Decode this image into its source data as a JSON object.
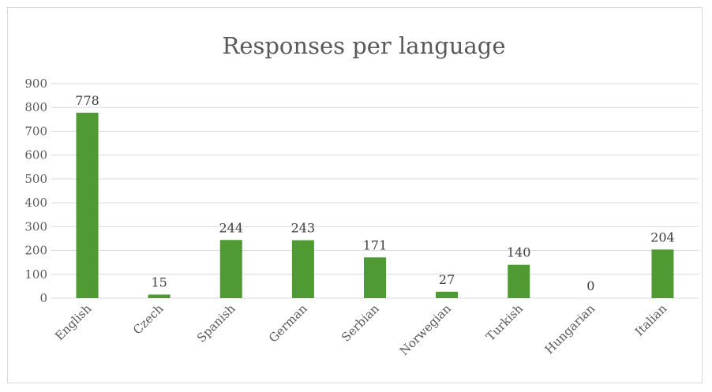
{
  "chart_data": {
    "type": "bar",
    "title": "Responses per language",
    "xlabel": "",
    "ylabel": "",
    "categories": [
      "English",
      "Czech",
      "Spanish",
      "German",
      "Serbian",
      "Norwegian",
      "Turkish",
      "Hungarian",
      "Italian"
    ],
    "values": [
      778,
      15,
      244,
      243,
      171,
      27,
      140,
      0,
      204
    ],
    "ylim": [
      0,
      900
    ],
    "yticks": [
      0,
      100,
      200,
      300,
      400,
      500,
      600,
      700,
      800,
      900
    ],
    "grid": true,
    "legend": "none",
    "data_labels": true,
    "bar_color": "#4f9a33"
  }
}
